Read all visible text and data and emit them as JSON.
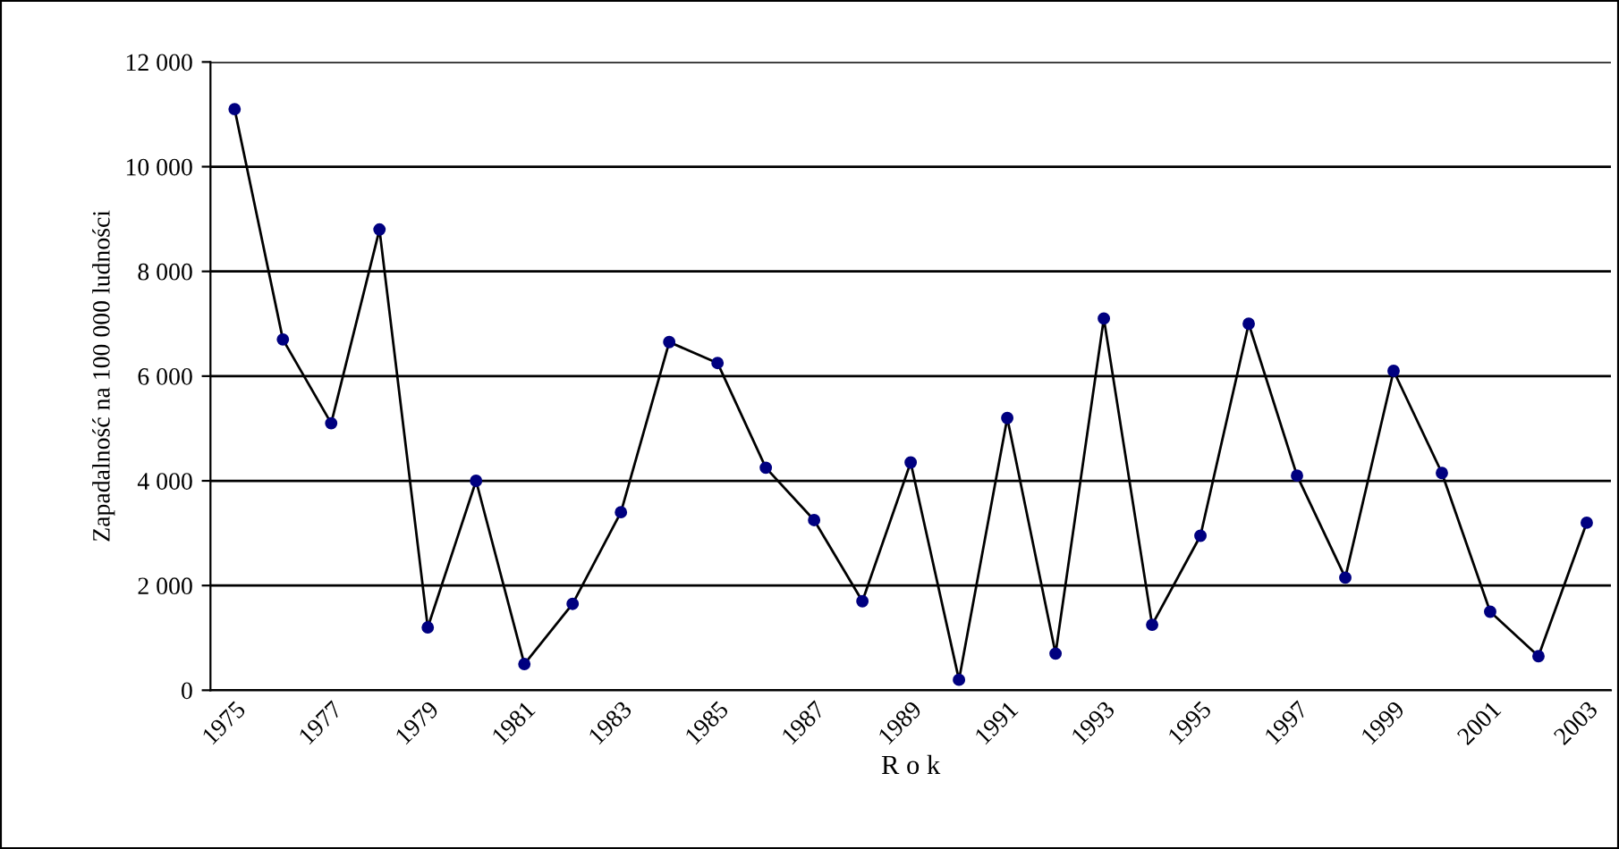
{
  "chart_data": {
    "type": "line",
    "xlabel": "R o k",
    "ylabel": "Zapadalność na 100 000 ludności",
    "categories": [
      "1975",
      null,
      "1977",
      null,
      "1979",
      null,
      "1981",
      null,
      "1983",
      null,
      "1985",
      null,
      "1987",
      null,
      "1989",
      null,
      "1991",
      null,
      "1993",
      null,
      "1995",
      null,
      "1997",
      null,
      "1999",
      null,
      "2001",
      null,
      "2003"
    ],
    "series": [
      {
        "color": "#000080",
        "values": [
          11100,
          6700,
          5100,
          8800,
          1200,
          4000,
          500,
          1650,
          3400,
          6650,
          6250,
          4250,
          3250,
          1700,
          4350,
          200,
          5200,
          700,
          7100,
          1250,
          2950,
          7000,
          4100,
          2150,
          6100,
          4150,
          1500,
          650,
          3200
        ]
      }
    ],
    "ylim": [
      0,
      12000
    ],
    "yticks": [
      0,
      {
        "value": 2000,
        "label": "2 000"
      },
      {
        "value": 4000,
        "label": "4 000"
      },
      {
        "value": 6000,
        "label": "6 000"
      },
      {
        "value": 8000,
        "label": "8 000"
      },
      {
        "value": 10000,
        "label": "10 000"
      },
      {
        "value": 12000,
        "label": "12 000"
      }
    ],
    "grid": "y",
    "marker": "circle",
    "line_style": "solid",
    "legend": false
  }
}
